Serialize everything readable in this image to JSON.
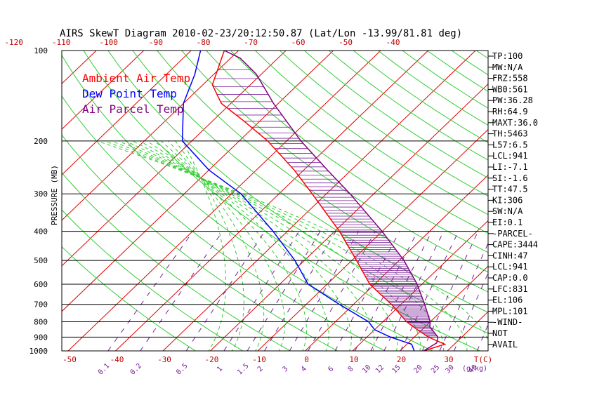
{
  "chart_data": {
    "type": "line",
    "title": "AIRS SkewT Diagram 2010-02-23/20:12:50.87 (Lat/Lon -13.99/81.81 deg)",
    "ylabel": "PRESSURE (MB)",
    "xlabel": "T(C)",
    "mixing_ratio_unit": "(g/kg)",
    "y_scale": "log",
    "y_reversed": true,
    "ylim": [
      1000,
      100
    ],
    "pressure_ticks": [
      100,
      200,
      300,
      400,
      500,
      600,
      700,
      800,
      900,
      1000
    ],
    "bottom_temp_ticks": [
      -50,
      -40,
      -30,
      -20,
      -10,
      0,
      10,
      20,
      30
    ],
    "top_temp_ticks": [
      -120,
      -110,
      -100,
      -90,
      -80,
      -70,
      -60,
      -50,
      -40
    ],
    "mixing_ratio_ticks": [
      "0.1",
      "0.2",
      "0.5",
      "1",
      "1.5",
      "2",
      "3",
      "4",
      "6",
      "8",
      "10",
      "12",
      "15",
      "20",
      "25",
      "30",
      "40"
    ],
    "legend": [
      {
        "label": "Ambient Air Temp",
        "color": "#ff0000"
      },
      {
        "label": "Dew Point Temp",
        "color": "#0000ff"
      },
      {
        "label": "Air Parcel Temp",
        "color": "#800080"
      }
    ],
    "series": [
      {
        "name": "Ambient Air Temp",
        "color": "#ff0000",
        "points": [
          [
            1000,
            25
          ],
          [
            950,
            28
          ],
          [
            900,
            23
          ],
          [
            850,
            19
          ],
          [
            800,
            15
          ],
          [
            700,
            8
          ],
          [
            600,
            -1
          ],
          [
            500,
            -9
          ],
          [
            400,
            -19
          ],
          [
            300,
            -33
          ],
          [
            250,
            -42
          ],
          [
            200,
            -54
          ],
          [
            170,
            -64
          ],
          [
            150,
            -72
          ],
          [
            130,
            -78
          ],
          [
            100,
            -83
          ]
        ]
      },
      {
        "name": "Dew Point Temp",
        "color": "#0000ff",
        "points": [
          [
            1000,
            23
          ],
          [
            950,
            21
          ],
          [
            900,
            15
          ],
          [
            850,
            10
          ],
          [
            800,
            7
          ],
          [
            700,
            -3
          ],
          [
            600,
            -14
          ],
          [
            500,
            -22
          ],
          [
            400,
            -33
          ],
          [
            300,
            -48
          ],
          [
            250,
            -60
          ],
          [
            200,
            -72
          ],
          [
            150,
            -80
          ],
          [
            120,
            -84
          ],
          [
            100,
            -88
          ]
        ]
      },
      {
        "name": "Air Parcel Temp",
        "color": "#800080",
        "points": [
          [
            1000,
            25
          ],
          [
            941,
            26
          ],
          [
            900,
            25
          ],
          [
            831,
            21
          ],
          [
            800,
            20
          ],
          [
            700,
            15
          ],
          [
            600,
            9
          ],
          [
            500,
            1
          ],
          [
            400,
            -10
          ],
          [
            300,
            -25
          ],
          [
            250,
            -35
          ],
          [
            200,
            -47
          ],
          [
            150,
            -61
          ],
          [
            120,
            -71
          ],
          [
            106,
            -78
          ],
          [
            100,
            -83
          ]
        ]
      }
    ],
    "grid": true
  },
  "stats": [
    "TP:100",
    "MW:N/A",
    "FRZ:558",
    "WB0:561",
    "PW:36.28",
    "RH:64.9",
    "MAXT:36.0",
    "TH:5463",
    "L57:6.5",
    "LCL:941",
    "LI:-7.1",
    "SI:-1.6",
    "TT:47.5",
    "KI:306",
    "SW:N/A",
    "EI:0.1",
    "-PARCEL-",
    "CAPE:3444",
    "CINH:47",
    "LCL:941",
    "CAP:0.0",
    "LFC:831",
    "EL:106",
    "MPL:101",
    "-WIND-",
    "NOT",
    "AVAIL"
  ]
}
